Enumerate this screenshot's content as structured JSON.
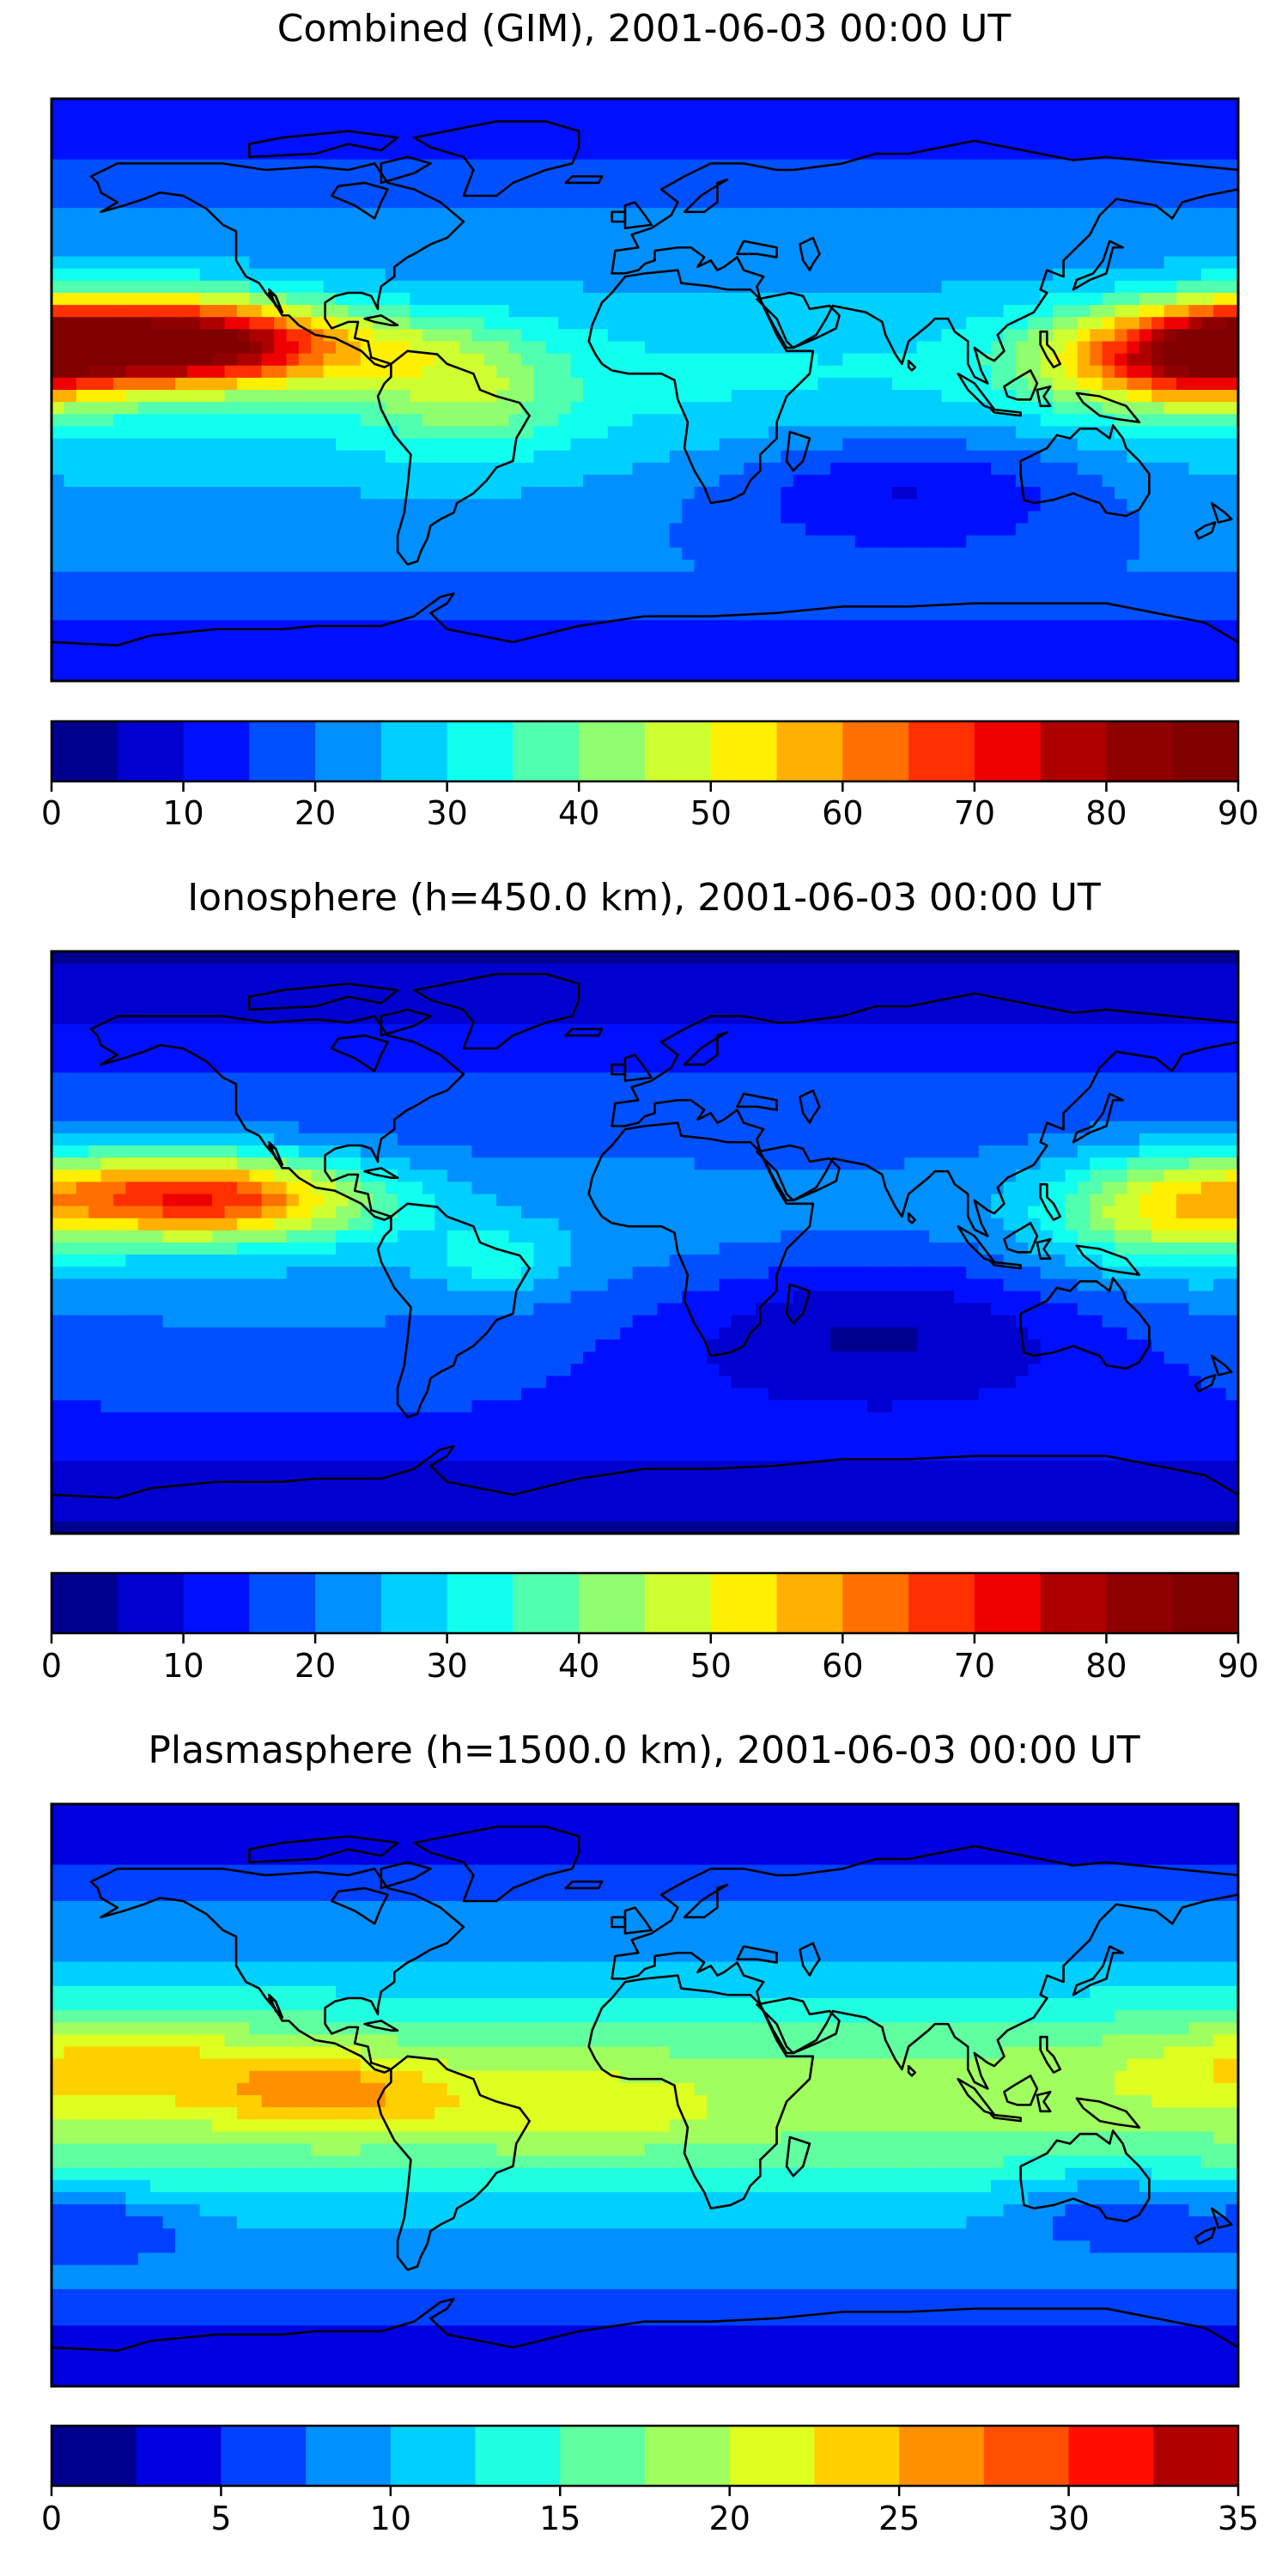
{
  "palette": {
    "jet18": [
      "#00008f",
      "#0000cf",
      "#0010ff",
      "#0050ff",
      "#0090ff",
      "#00d0ff",
      "#10ffef",
      "#50ffaf",
      "#90ff6f",
      "#cfff30",
      "#ffef00",
      "#ffb000",
      "#ff7000",
      "#ff3000",
      "#ef0000",
      "#af0000",
      "#8f0000",
      "#800000"
    ],
    "jet14": [
      "#00008f",
      "#0000e0",
      "#0040ff",
      "#0090ff",
      "#00d0ff",
      "#20ffdf",
      "#60ff9f",
      "#a0ff5f",
      "#dfff20",
      "#ffd000",
      "#ff9000",
      "#ff5000",
      "#ff1000",
      "#b00000"
    ]
  },
  "panels": [
    {
      "title": "Combined (GIM), 2001-06-03 00:00 UT",
      "colorbar": {
        "min": 0,
        "max": 90,
        "step": 5,
        "tick_labels": [
          "0",
          "10",
          "20",
          "30",
          "40",
          "50",
          "60",
          "70",
          "80",
          "90"
        ],
        "palette": "jet18"
      },
      "field": {
        "base": 4,
        "equator_boost": 2.2,
        "blobs": [
          {
            "lon": -150,
            "lat": 15,
            "amp": 11.0,
            "rx": 45,
            "ry": 14
          },
          {
            "lon": -110,
            "lat": 13,
            "amp": 4.0,
            "rx": 50,
            "ry": 12
          },
          {
            "lon": -55,
            "lat": 0,
            "amp": 3.0,
            "rx": 30,
            "ry": 18
          },
          {
            "lon": 150,
            "lat": 10,
            "amp": 6.0,
            "rx": 35,
            "ry": 15
          },
          {
            "lon": 175,
            "lat": 12,
            "amp": 5.0,
            "rx": 25,
            "ry": 15
          },
          {
            "lon": 80,
            "lat": -30,
            "amp": -3.0,
            "rx": 60,
            "ry": 20
          }
        ]
      }
    },
    {
      "title": "Ionosphere  (h=450.0 km), 2001-06-03 00:00 UT",
      "colorbar": {
        "min": 0,
        "max": 90,
        "step": 5,
        "tick_labels": [
          "0",
          "10",
          "20",
          "30",
          "40",
          "50",
          "60",
          "70",
          "80",
          "90"
        ],
        "palette": "jet18"
      },
      "field": {
        "base": 2.8,
        "equator_boost": 2.0,
        "blobs": [
          {
            "lon": -145,
            "lat": 15,
            "amp": 7.5,
            "rx": 50,
            "ry": 14
          },
          {
            "lon": -115,
            "lat": 12,
            "amp": 3.0,
            "rx": 45,
            "ry": 12
          },
          {
            "lon": -45,
            "lat": -5,
            "amp": 2.0,
            "rx": 20,
            "ry": 10
          },
          {
            "lon": 155,
            "lat": 10,
            "amp": 4.5,
            "rx": 35,
            "ry": 18
          },
          {
            "lon": 70,
            "lat": -25,
            "amp": -3.0,
            "rx": 70,
            "ry": 25
          }
        ]
      }
    },
    {
      "title": "Plasmasphere (h=1500.0 km), 2001-06-03 00:00 UT",
      "colorbar": {
        "min": 0,
        "max": 35,
        "step": 2.5,
        "tick_labels": [
          "0",
          "5",
          "10",
          "15",
          "20",
          "25",
          "30",
          "35"
        ],
        "palette": "jet14"
      },
      "field": {
        "base": 3.0,
        "equator_boost": 4.5,
        "blobs": [
          {
            "lon": -160,
            "lat": 10,
            "amp": 2.5,
            "rx": 50,
            "ry": 14
          },
          {
            "lon": -95,
            "lat": 0,
            "amp": 3.0,
            "rx": 35,
            "ry": 12
          },
          {
            "lon": -20,
            "lat": -5,
            "amp": 1.5,
            "rx": 40,
            "ry": 12
          },
          {
            "lon": -165,
            "lat": -40,
            "amp": -2.0,
            "rx": 30,
            "ry": 10
          },
          {
            "lon": 140,
            "lat": -35,
            "amp": -2.0,
            "rx": 30,
            "ry": 12
          }
        ]
      }
    }
  ]
}
